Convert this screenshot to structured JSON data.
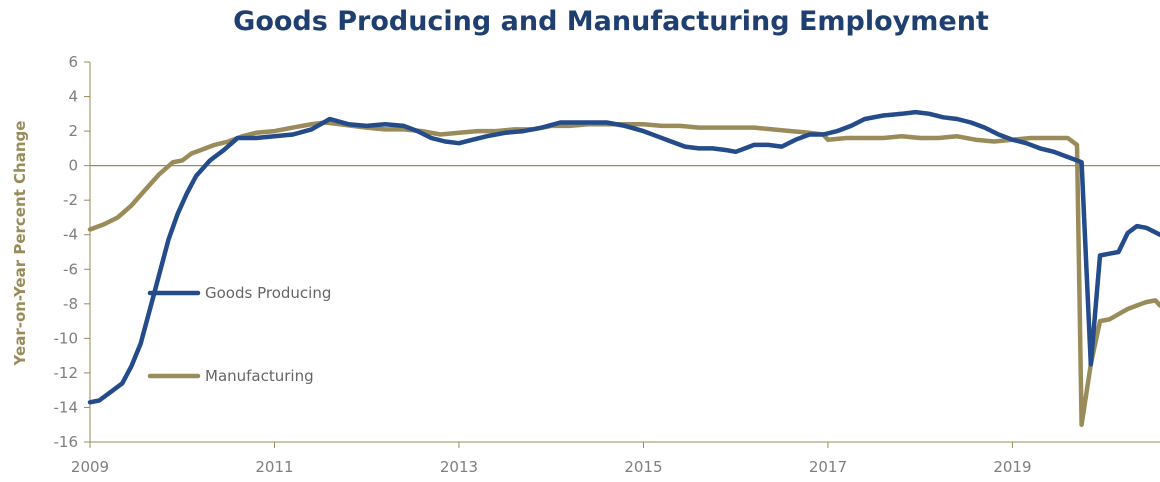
{
  "chart_data": {
    "type": "line",
    "title": "Goods Producing and Manufacturing Employment",
    "ylabel": "Year-on-Year Percent Change",
    "xlabel": "",
    "xlim": [
      2009.0,
      2020.6
    ],
    "ylim": [
      -16,
      6
    ],
    "xticks": [
      "2009",
      "2011",
      "2013",
      "2015",
      "2017",
      "2019"
    ],
    "xtick_values": [
      2009,
      2011,
      2013,
      2015,
      2017,
      2019
    ],
    "yticks": [
      6,
      4,
      2,
      0,
      -2,
      -4,
      -6,
      -8,
      -10,
      -12,
      -14,
      -16
    ],
    "reference_line": 0,
    "grid": false,
    "legend_position": "inside-left",
    "series": [
      {
        "name": "Goods Producing",
        "color": "#244b8a",
        "x": [
          2009.0,
          2009.1,
          2009.25,
          2009.35,
          2009.45,
          2009.55,
          2009.65,
          2009.75,
          2009.85,
          2009.95,
          2010.05,
          2010.15,
          2010.3,
          2010.45,
          2010.6,
          2010.8,
          2011.0,
          2011.2,
          2011.4,
          2011.6,
          2011.8,
          2012.0,
          2012.2,
          2012.4,
          2012.55,
          2012.7,
          2012.85,
          2013.0,
          2013.15,
          2013.3,
          2013.5,
          2013.7,
          2013.9,
          2014.1,
          2014.3,
          2014.45,
          2014.6,
          2014.8,
          2015.0,
          2015.15,
          2015.3,
          2015.45,
          2015.6,
          2015.75,
          2015.9,
          2016.0,
          2016.1,
          2016.2,
          2016.35,
          2016.5,
          2016.65,
          2016.8,
          2016.95,
          2017.1,
          2017.25,
          2017.4,
          2017.6,
          2017.8,
          2017.95,
          2018.1,
          2018.25,
          2018.4,
          2018.55,
          2018.7,
          2018.85,
          2019.0,
          2019.15,
          2019.3,
          2019.45,
          2019.6,
          2019.75,
          2019.85,
          2019.95,
          2020.05,
          2020.15,
          2020.25,
          2020.35,
          2020.45,
          2020.6
        ],
        "values": [
          -13.7,
          -13.6,
          -13.0,
          -12.6,
          -11.6,
          -10.3,
          -8.3,
          -6.3,
          -4.3,
          -2.8,
          -1.6,
          -0.6,
          0.3,
          0.9,
          1.6,
          1.6,
          1.7,
          1.8,
          2.1,
          2.7,
          2.4,
          2.3,
          2.4,
          2.3,
          2.0,
          1.6,
          1.4,
          1.3,
          1.5,
          1.7,
          1.9,
          2.0,
          2.2,
          2.5,
          2.5,
          2.5,
          2.5,
          2.3,
          2.0,
          1.7,
          1.4,
          1.1,
          1.0,
          1.0,
          0.9,
          0.8,
          1.0,
          1.2,
          1.2,
          1.1,
          1.5,
          1.8,
          1.8,
          2.0,
          2.3,
          2.7,
          2.9,
          3.0,
          3.1,
          3.0,
          2.8,
          2.7,
          2.5,
          2.2,
          1.8,
          1.5,
          1.3,
          1.0,
          0.8,
          0.5,
          0.2,
          -11.5,
          -5.2,
          -5.1,
          -5.0,
          -3.9,
          -3.5,
          -3.6,
          -4.0
        ]
      },
      {
        "name": "Manufacturing",
        "color": "#9a8c5a",
        "x": [
          2009.0,
          2009.15,
          2009.3,
          2009.45,
          2009.6,
          2009.75,
          2009.9,
          2010.0,
          2010.1,
          2010.2,
          2010.35,
          2010.5,
          2010.65,
          2010.8,
          2011.0,
          2011.2,
          2011.4,
          2011.55,
          2011.7,
          2011.85,
          2012.0,
          2012.2,
          2012.4,
          2012.6,
          2012.8,
          2013.0,
          2013.2,
          2013.4,
          2013.6,
          2013.8,
          2014.0,
          2014.2,
          2014.4,
          2014.6,
          2014.8,
          2015.0,
          2015.2,
          2015.4,
          2015.6,
          2015.8,
          2016.0,
          2016.2,
          2016.4,
          2016.6,
          2016.8,
          2016.95,
          2017.0,
          2017.2,
          2017.4,
          2017.6,
          2017.8,
          2018.0,
          2018.2,
          2018.4,
          2018.6,
          2018.8,
          2019.0,
          2019.2,
          2019.4,
          2019.6,
          2019.7,
          2019.75,
          2019.85,
          2019.95,
          2020.05,
          2020.15,
          2020.25,
          2020.35,
          2020.45,
          2020.55,
          2020.6
        ],
        "values": [
          -3.7,
          -3.4,
          -3.0,
          -2.3,
          -1.4,
          -0.5,
          0.2,
          0.3,
          0.7,
          0.9,
          1.2,
          1.4,
          1.7,
          1.9,
          2.0,
          2.2,
          2.4,
          2.5,
          2.4,
          2.3,
          2.2,
          2.1,
          2.1,
          2.0,
          1.8,
          1.9,
          2.0,
          2.0,
          2.1,
          2.1,
          2.3,
          2.3,
          2.4,
          2.4,
          2.4,
          2.4,
          2.3,
          2.3,
          2.2,
          2.2,
          2.2,
          2.2,
          2.1,
          2.0,
          1.9,
          1.8,
          1.5,
          1.6,
          1.6,
          1.6,
          1.7,
          1.6,
          1.6,
          1.7,
          1.5,
          1.4,
          1.5,
          1.6,
          1.6,
          1.6,
          1.2,
          -15.0,
          -11.5,
          -9.0,
          -8.9,
          -8.6,
          -8.3,
          -8.1,
          -7.9,
          -7.8,
          -8.1
        ]
      }
    ]
  }
}
